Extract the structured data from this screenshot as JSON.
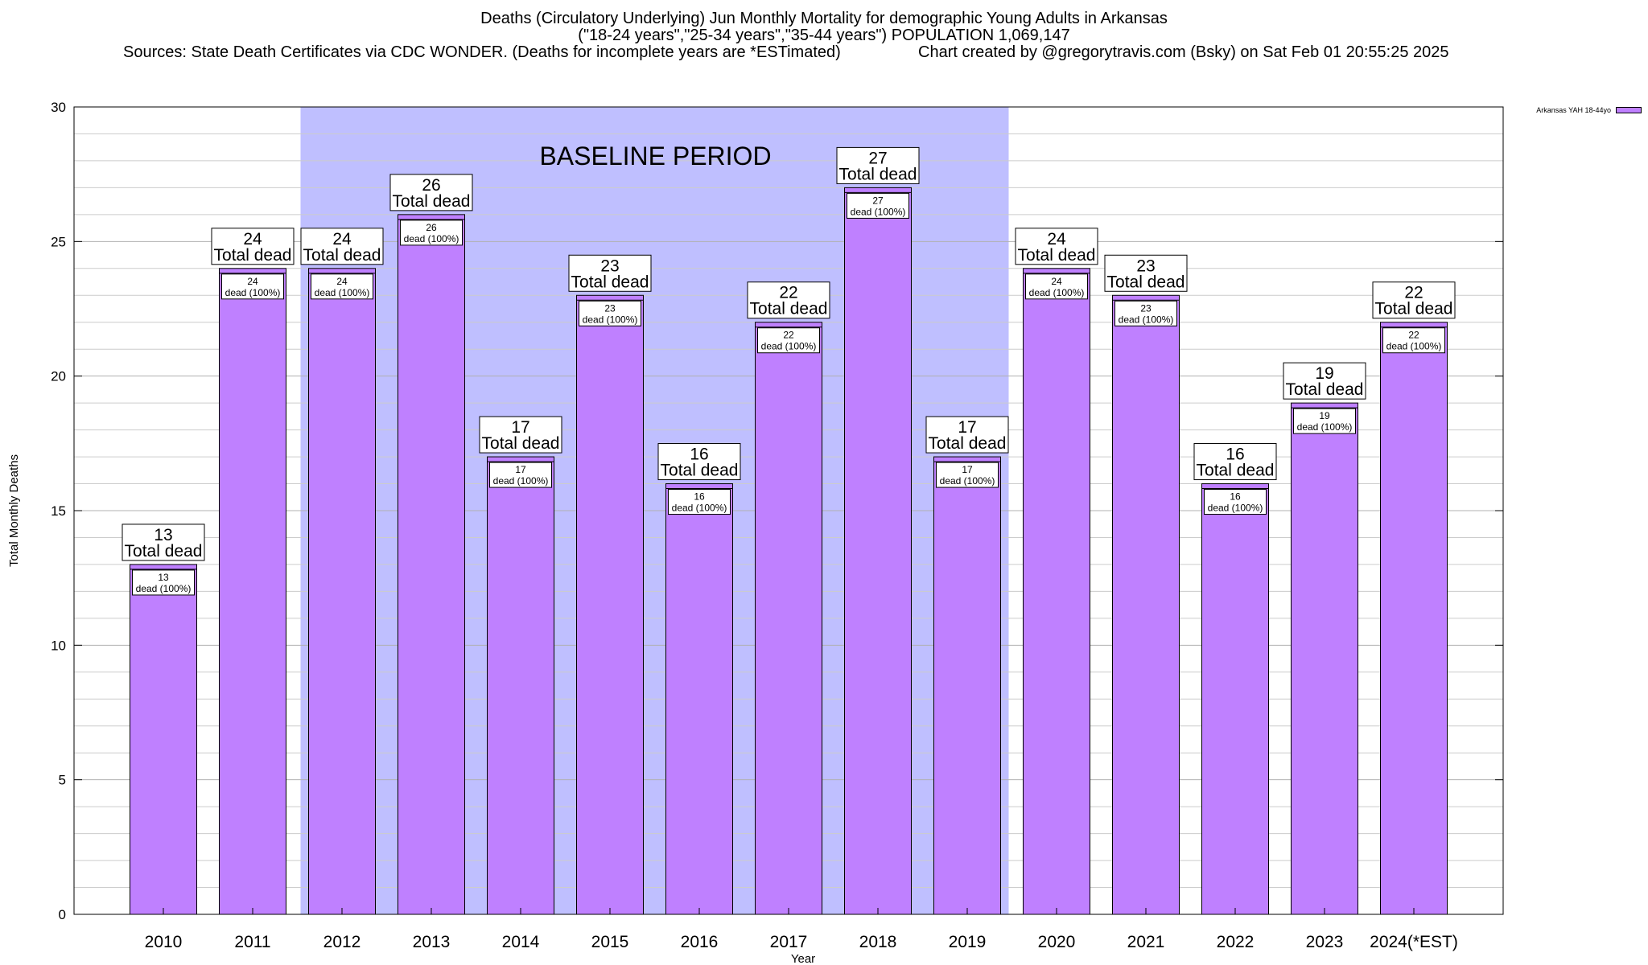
{
  "title": {
    "line1": "Deaths (Circulatory Underlying) Jun Monthly Mortality for demographic Young Adults in Arkansas",
    "line2": "(\"18-24 years\",\"25-34 years\",\"35-44 years\") POPULATION 1,069,147",
    "sources": "Sources: State Death Certificates via CDC WONDER. (Deaths for incomplete years are *ESTimated)",
    "credit": "Chart created by @gregorytravis.com (Bsky) on Sat Feb 01 20:55:25 2025"
  },
  "chart_data": {
    "type": "bar",
    "categories": [
      "2010",
      "2011",
      "2012",
      "2013",
      "2014",
      "2015",
      "2016",
      "2017",
      "2018",
      "2019",
      "2020",
      "2021",
      "2022",
      "2023",
      "2024(*EST)"
    ],
    "series": [
      {
        "name": "Arkansas YAH 18-44yo",
        "values": [
          13,
          24,
          24,
          26,
          17,
          23,
          16,
          22,
          27,
          17,
          24,
          23,
          16,
          19,
          22
        ]
      }
    ],
    "inner_labels": [
      "dead (100%)",
      "dead (100%)",
      "dead (100%)",
      "dead (100%)",
      "dead (100%)",
      "dead (100%)",
      "dead (100%)",
      "dead (100%)",
      "dead (100%)",
      "dead (100%)",
      "dead (100%)",
      "dead (100%)",
      "dead (100%)",
      "dead (100%)",
      "dead (100%)"
    ],
    "total_label": "Total dead",
    "xlabel": "Year",
    "ylabel": "Total Monthly Deaths",
    "ylim": [
      0,
      30
    ],
    "yticks": [
      0,
      5,
      10,
      15,
      20,
      25,
      30
    ],
    "baseline": {
      "label": "BASELINE PERIOD",
      "from": "2012",
      "to": "2019"
    },
    "grid": true,
    "legend_position": "top-right",
    "colors": {
      "bar": "#bf80ff",
      "baseline": "#bfbfff"
    }
  }
}
